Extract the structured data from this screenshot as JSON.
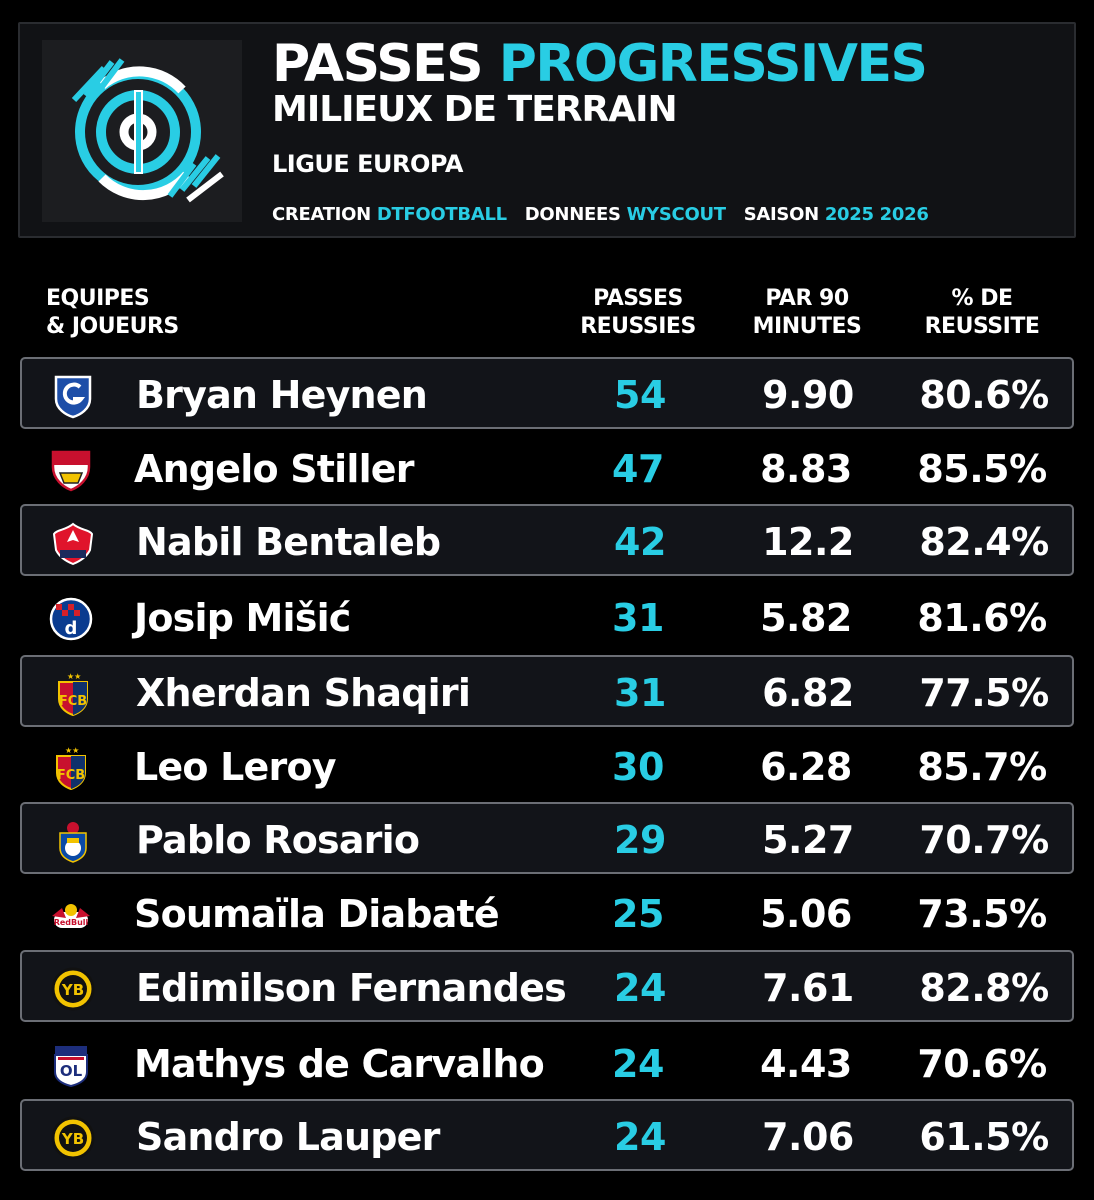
{
  "header": {
    "title_part1": "PASSES",
    "title_part2": "PROGRESSIVES",
    "subtitle": "MILIEUX DE TERRAIN",
    "competition": "LIGUE EUROPA",
    "credits": {
      "creation_label": "CREATION",
      "creation_value": "DTFOOTBALL",
      "data_label": "DONNEES",
      "data_value": "WYSCOUT",
      "season_label": "SAISON",
      "season_value": "2025 2026"
    },
    "logo_icon": "dtfootball-logo-icon"
  },
  "columns": {
    "team_line1": "EQUIPES",
    "team_line2": "& JOUEURS",
    "passes_line1": "PASSES",
    "passes_line2": "REUSSIES",
    "p90_line1": "PAR 90",
    "p90_line2": "MINUTES",
    "pct_line1": "% DE",
    "pct_line2": "REUSSITE"
  },
  "colors": {
    "accent": "#29cde4",
    "row_border": "#6b6e75"
  },
  "rows": [
    {
      "crest": "genk-crest-icon",
      "player": "Bryan Heynen",
      "passes": "54",
      "per90": "9.90",
      "pct": "80.6%"
    },
    {
      "crest": "stuttgart-crest-icon",
      "player": "Angelo Stiller",
      "passes": "47",
      "per90": "8.83",
      "pct": "85.5%"
    },
    {
      "crest": "lille-crest-icon",
      "player": "Nabil Bentaleb",
      "passes": "42",
      "per90": "12.2",
      "pct": "82.4%"
    },
    {
      "crest": "dinamo-zagreb-crest-icon",
      "player": "Josip Mišić",
      "passes": "31",
      "per90": "5.82",
      "pct": "81.6%"
    },
    {
      "crest": "basel-crest-icon",
      "player": "Xherdan Shaqiri",
      "passes": "31",
      "per90": "6.82",
      "pct": "77.5%"
    },
    {
      "crest": "basel-crest-icon",
      "player": "Leo Leroy",
      "passes": "30",
      "per90": "6.28",
      "pct": "85.7%"
    },
    {
      "crest": "porto-crest-icon",
      "player": "Pablo Rosario",
      "passes": "29",
      "per90": "5.27",
      "pct": "70.7%"
    },
    {
      "crest": "salzburg-crest-icon",
      "player": "Soumaïla Diabaté",
      "passes": "25",
      "per90": "5.06",
      "pct": "73.5%"
    },
    {
      "crest": "young-boys-crest-icon",
      "player": "Edimilson Fernandes",
      "passes": "24",
      "per90": "7.61",
      "pct": "82.8%"
    },
    {
      "crest": "lyon-crest-icon",
      "player": "Mathys de Carvalho",
      "passes": "24",
      "per90": "4.43",
      "pct": "70.6%"
    },
    {
      "crest": "young-boys-crest-icon",
      "player": "Sandro Lauper",
      "passes": "24",
      "per90": "7.06",
      "pct": "61.5%"
    }
  ]
}
